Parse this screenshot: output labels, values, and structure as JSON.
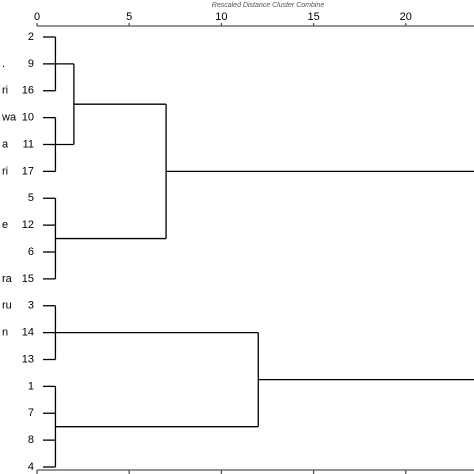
{
  "chart_data": {
    "type": "dendrogram",
    "title": "Rescaled Distance Cluster Combine",
    "leaves": [
      "2",
      "9",
      "16",
      "10",
      "11",
      "17",
      "5",
      "12",
      "6",
      "15",
      "3",
      "14",
      "13",
      "1",
      "7",
      "8",
      "4"
    ],
    "leaf_names": [
      null,
      ".",
      "ri",
      "wa",
      "a",
      "ri",
      null,
      "e",
      null,
      "ra",
      "ru",
      "n",
      null,
      null,
      null,
      null,
      null
    ],
    "merges": [
      {
        "children": [
          0,
          1,
          2
        ],
        "height": 1
      },
      {
        "children": [
          3,
          4,
          5
        ],
        "height": 1
      },
      {
        "children": [
          6,
          7,
          8,
          9
        ],
        "height": 1
      },
      {
        "children": [
          10,
          11,
          12
        ],
        "height": 1
      },
      {
        "children": [
          13,
          14,
          15,
          16
        ],
        "height": 1
      },
      {
        "children": [
          17,
          18
        ],
        "height": 2
      },
      {
        "children": [
          22,
          19
        ],
        "height": 7
      },
      {
        "children": [
          20,
          21
        ],
        "height": 12
      }
    ],
    "xlim": [
      0,
      23.7
    ],
    "xticks": [
      0,
      5,
      10,
      15,
      20
    ],
    "color": "#000000"
  }
}
